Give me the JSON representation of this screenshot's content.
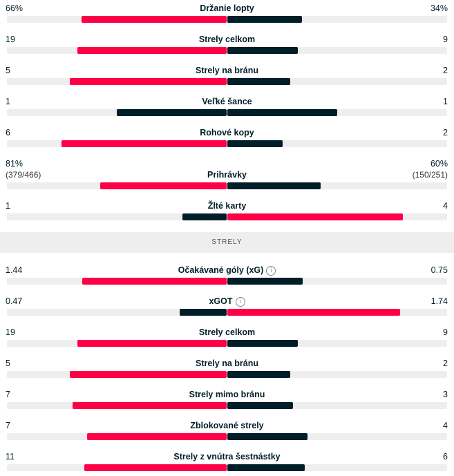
{
  "colors": {
    "home": "#ff0046",
    "away": "#001e28",
    "track": "#eeeeee"
  },
  "section_header": "STRELY",
  "top_stats": [
    {
      "label": "Držanie lopty",
      "home": "66%",
      "away": "34%",
      "home_share": 0.66,
      "away_share": 0.34,
      "highlight": "home"
    },
    {
      "label": "Strely celkom",
      "home": "19",
      "away": "9",
      "home_share": 0.678,
      "away_share": 0.322,
      "highlight": "home"
    },
    {
      "label": "Strely na bránu",
      "home": "5",
      "away": "2",
      "home_share": 0.714,
      "away_share": 0.286,
      "highlight": "home"
    },
    {
      "label": "Veľké šance",
      "home": "1",
      "away": "1",
      "home_share": 0.5,
      "away_share": 0.5,
      "highlight": "none"
    },
    {
      "label": "Rohové kopy",
      "home": "6",
      "away": "2",
      "home_share": 0.75,
      "away_share": 0.25,
      "highlight": "home"
    },
    {
      "label": "Prihrávky",
      "home": "81%",
      "away": "60%",
      "home_sub": "(379/466)",
      "away_sub": "(150/251)",
      "home_share": 0.574,
      "away_share": 0.426,
      "highlight": "home"
    },
    {
      "label": "Žlté karty",
      "home": "1",
      "away": "4",
      "home_share": 0.2,
      "away_share": 0.8,
      "highlight": "away"
    }
  ],
  "shot_stats": [
    {
      "label": "Očakávané góly (xG)",
      "info_icon": "info-icon",
      "home": "1.44",
      "away": "0.75",
      "home_share": 0.658,
      "away_share": 0.342,
      "highlight": "home"
    },
    {
      "label": "xGOT",
      "info_icon": "info-icon",
      "home": "0.47",
      "away": "1.74",
      "home_share": 0.213,
      "away_share": 0.787,
      "highlight": "away"
    },
    {
      "label": "Strely celkom",
      "home": "19",
      "away": "9",
      "home_share": 0.678,
      "away_share": 0.322,
      "highlight": "home"
    },
    {
      "label": "Strely na bránu",
      "home": "5",
      "away": "2",
      "home_share": 0.714,
      "away_share": 0.286,
      "highlight": "home"
    },
    {
      "label": "Strely mimo bránu",
      "home": "7",
      "away": "3",
      "home_share": 0.7,
      "away_share": 0.3,
      "highlight": "home"
    },
    {
      "label": "Zblokované strely",
      "home": "7",
      "away": "4",
      "home_share": 0.636,
      "away_share": 0.364,
      "highlight": "home"
    },
    {
      "label": "Strely z vnútra šestnástky",
      "home": "11",
      "away": "6",
      "home_share": 0.647,
      "away_share": 0.353,
      "highlight": "home"
    }
  ]
}
